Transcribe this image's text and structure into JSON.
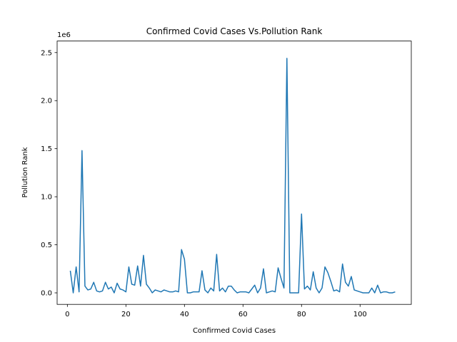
{
  "chart_data": {
    "type": "line",
    "title": "Confirmed Covid Cases Vs.Pollution Rank",
    "xlabel": "Confirmed Covid Cases",
    "ylabel": "Pollution Rank",
    "y_offset_label": "1e6",
    "xlim": [
      -3.5,
      117.5
    ],
    "ylim": [
      -0.12,
      2.62
    ],
    "x_ticks": [
      0,
      20,
      40,
      60,
      80,
      100
    ],
    "x_tick_labels": [
      "0",
      "20",
      "40",
      "60",
      "80",
      "100"
    ],
    "y_ticks": [
      0.0,
      0.5,
      1.0,
      1.5,
      2.0,
      2.5
    ],
    "y_tick_labels": [
      "0.0",
      "0.5",
      "1.0",
      "1.5",
      "2.0",
      "2.5"
    ],
    "grid": false,
    "line_color": "#1f77b4",
    "series": [
      {
        "x": [
          1,
          2,
          3,
          4,
          5,
          6,
          7,
          8,
          9,
          10,
          11,
          12,
          13,
          14,
          15,
          16,
          17,
          18,
          19,
          20,
          21,
          22,
          23,
          24,
          25,
          26,
          27,
          28,
          29,
          30,
          31,
          32,
          33,
          34,
          35,
          36,
          37,
          38,
          39,
          40,
          41,
          42,
          43,
          44,
          45,
          46,
          47,
          48,
          49,
          50,
          51,
          52,
          53,
          54,
          55,
          56,
          57,
          58,
          59,
          60,
          61,
          62,
          63,
          64,
          65,
          66,
          67,
          68,
          69,
          70,
          71,
          72,
          73,
          74,
          75,
          76,
          77,
          78,
          79,
          80,
          81,
          82,
          83,
          84,
          85,
          86,
          87,
          88,
          89,
          90,
          91,
          92,
          93,
          94,
          95,
          96,
          97,
          98,
          99,
          100,
          101,
          102,
          103,
          104,
          105,
          106,
          107,
          108,
          109,
          110,
          111,
          112
        ],
        "y": [
          0.23,
          0.0,
          0.27,
          0.01,
          1.48,
          0.07,
          0.03,
          0.04,
          0.11,
          0.02,
          0.01,
          0.02,
          0.11,
          0.04,
          0.06,
          0.0,
          0.1,
          0.04,
          0.03,
          0.01,
          0.27,
          0.09,
          0.08,
          0.28,
          0.07,
          0.39,
          0.09,
          0.05,
          0.0,
          0.03,
          0.02,
          0.01,
          0.03,
          0.02,
          0.01,
          0.01,
          0.02,
          0.01,
          0.45,
          0.35,
          0.0,
          0.0,
          0.01,
          0.01,
          0.01,
          0.23,
          0.03,
          0.0,
          0.05,
          0.02,
          0.4,
          0.02,
          0.05,
          0.01,
          0.07,
          0.07,
          0.03,
          0.0,
          0.01,
          0.01,
          0.01,
          0.0,
          0.04,
          0.08,
          0.0,
          0.05,
          0.25,
          0.0,
          0.01,
          0.02,
          0.01,
          0.26,
          0.15,
          0.05,
          2.44,
          0.0,
          0.0,
          0.0,
          0.0,
          0.82,
          0.04,
          0.07,
          0.03,
          0.22,
          0.05,
          0.0,
          0.05,
          0.27,
          0.21,
          0.12,
          0.02,
          0.03,
          0.01,
          0.3,
          0.11,
          0.07,
          0.17,
          0.03,
          0.02,
          0.01,
          0.0,
          -0.0,
          0.0,
          0.05,
          0.0,
          0.08,
          0.0,
          0.01,
          0.01,
          0.0,
          0.0,
          0.01
        ]
      }
    ]
  }
}
